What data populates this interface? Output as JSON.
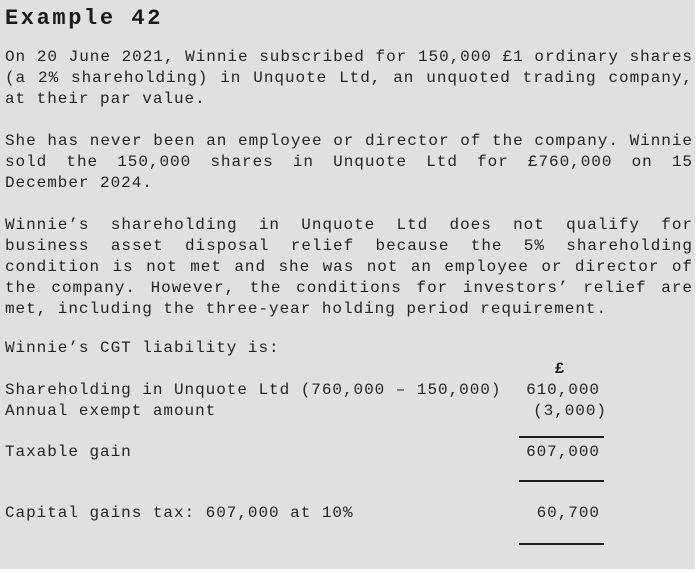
{
  "heading": "Example 42",
  "paragraphs": [
    {
      "lines": [
        {
          "text": "On 20 June 2021, Winnie subscribed for 150,000 £1 ordinary shares",
          "justify": true
        },
        {
          "text": "(a 2% shareholding) in Unquote Ltd, an unquoted trading company,",
          "justify": true
        },
        {
          "text": "at their par value.",
          "justify": false
        }
      ]
    },
    {
      "lines": [
        {
          "text": "She has never been an employee or director of the company. Winnie",
          "justify": true
        },
        {
          "text": "sold the 150,000 shares in Unquote Ltd for £760,000 on 15",
          "justify": true
        },
        {
          "text": "December 2024.",
          "justify": false
        }
      ]
    },
    {
      "lines": [
        {
          "text": "Winnie’s shareholding in Unquote Ltd does not qualify for",
          "justify": true
        },
        {
          "text": "business asset disposal relief because the 5% shareholding",
          "justify": true
        },
        {
          "text": "condition is not met and she was not an employee or director of",
          "justify": true
        },
        {
          "text": "the company. However, the conditions for investors’ relief are",
          "justify": true
        },
        {
          "text": "met, including the three-year holding period requirement.",
          "justify": false
        }
      ]
    }
  ],
  "intro": "Winnie’s CGT liability is:",
  "table": {
    "currency_header": "£",
    "rows": [
      {
        "label": "Shareholding in Unquote Ltd (760,000 – 150,000)",
        "amount": "610,000",
        "paren": false
      },
      {
        "label": "Annual exempt amount",
        "amount": "(3,000)",
        "paren": true
      }
    ],
    "total": {
      "label": "Taxable gain",
      "amount": "607,000"
    },
    "tax": {
      "label": "Capital gains tax: 607,000 at 10%",
      "amount": "60,700"
    }
  },
  "colors": {
    "page_background": "#e0e0e0",
    "text": "#242424"
  }
}
